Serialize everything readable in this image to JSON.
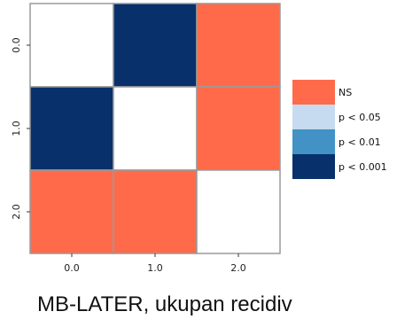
{
  "chart_data": {
    "type": "heatmap",
    "caption": "MB-LATER, ukupan recidiv",
    "x_ticks": [
      "0.0",
      "1.0",
      "2.0"
    ],
    "y_ticks": [
      "0.0",
      "1.0",
      "2.0"
    ],
    "matrix": [
      [
        "diag",
        "p < 0.001",
        "NS"
      ],
      [
        "p < 0.001",
        "diag",
        "NS"
      ],
      [
        "NS",
        "NS",
        "diag"
      ]
    ],
    "legend": [
      {
        "label": "NS",
        "color": "#ff6b4a"
      },
      {
        "label": "p < 0.05",
        "color": "#c6dbef"
      },
      {
        "label": "p < 0.01",
        "color": "#4292c6"
      },
      {
        "label": "p < 0.001",
        "color": "#08306b"
      }
    ],
    "diagonal_color": "#ffffff",
    "legend_placement": "right",
    "grid": false
  }
}
